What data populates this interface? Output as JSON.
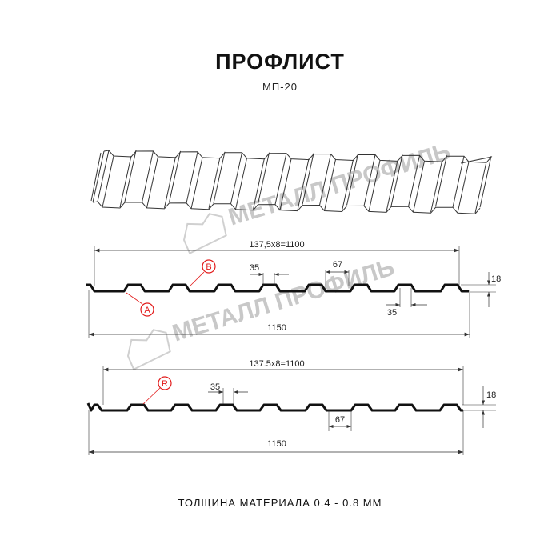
{
  "header": {
    "title": "ПРОФЛИСТ",
    "subtitle": "МП-20"
  },
  "watermark": {
    "text": "МЕТАЛЛ ПРОФИЛЬ",
    "color": "#c8c8c8"
  },
  "profile_top": {
    "pitch_dim": "137,5x8=1100",
    "width_dim": "1150",
    "rib_top_dim": "35",
    "rib_bottom_dim": "35",
    "gap_dim": "67",
    "height_dim": "18",
    "label_a": "A",
    "label_b": "B"
  },
  "profile_bottom": {
    "pitch_dim": "137.5x8=1100",
    "width_dim": "1150",
    "rib_top_dim": "35",
    "gap_dim": "67",
    "height_dim": "18",
    "label_r": "R"
  },
  "footer": {
    "thickness": "ТОЛЩИНА МАТЕРИАЛА 0.4 - 0.8 ММ"
  },
  "colors": {
    "profile": "#111111",
    "marker": "#e21b1b",
    "dimension": "#333333"
  }
}
